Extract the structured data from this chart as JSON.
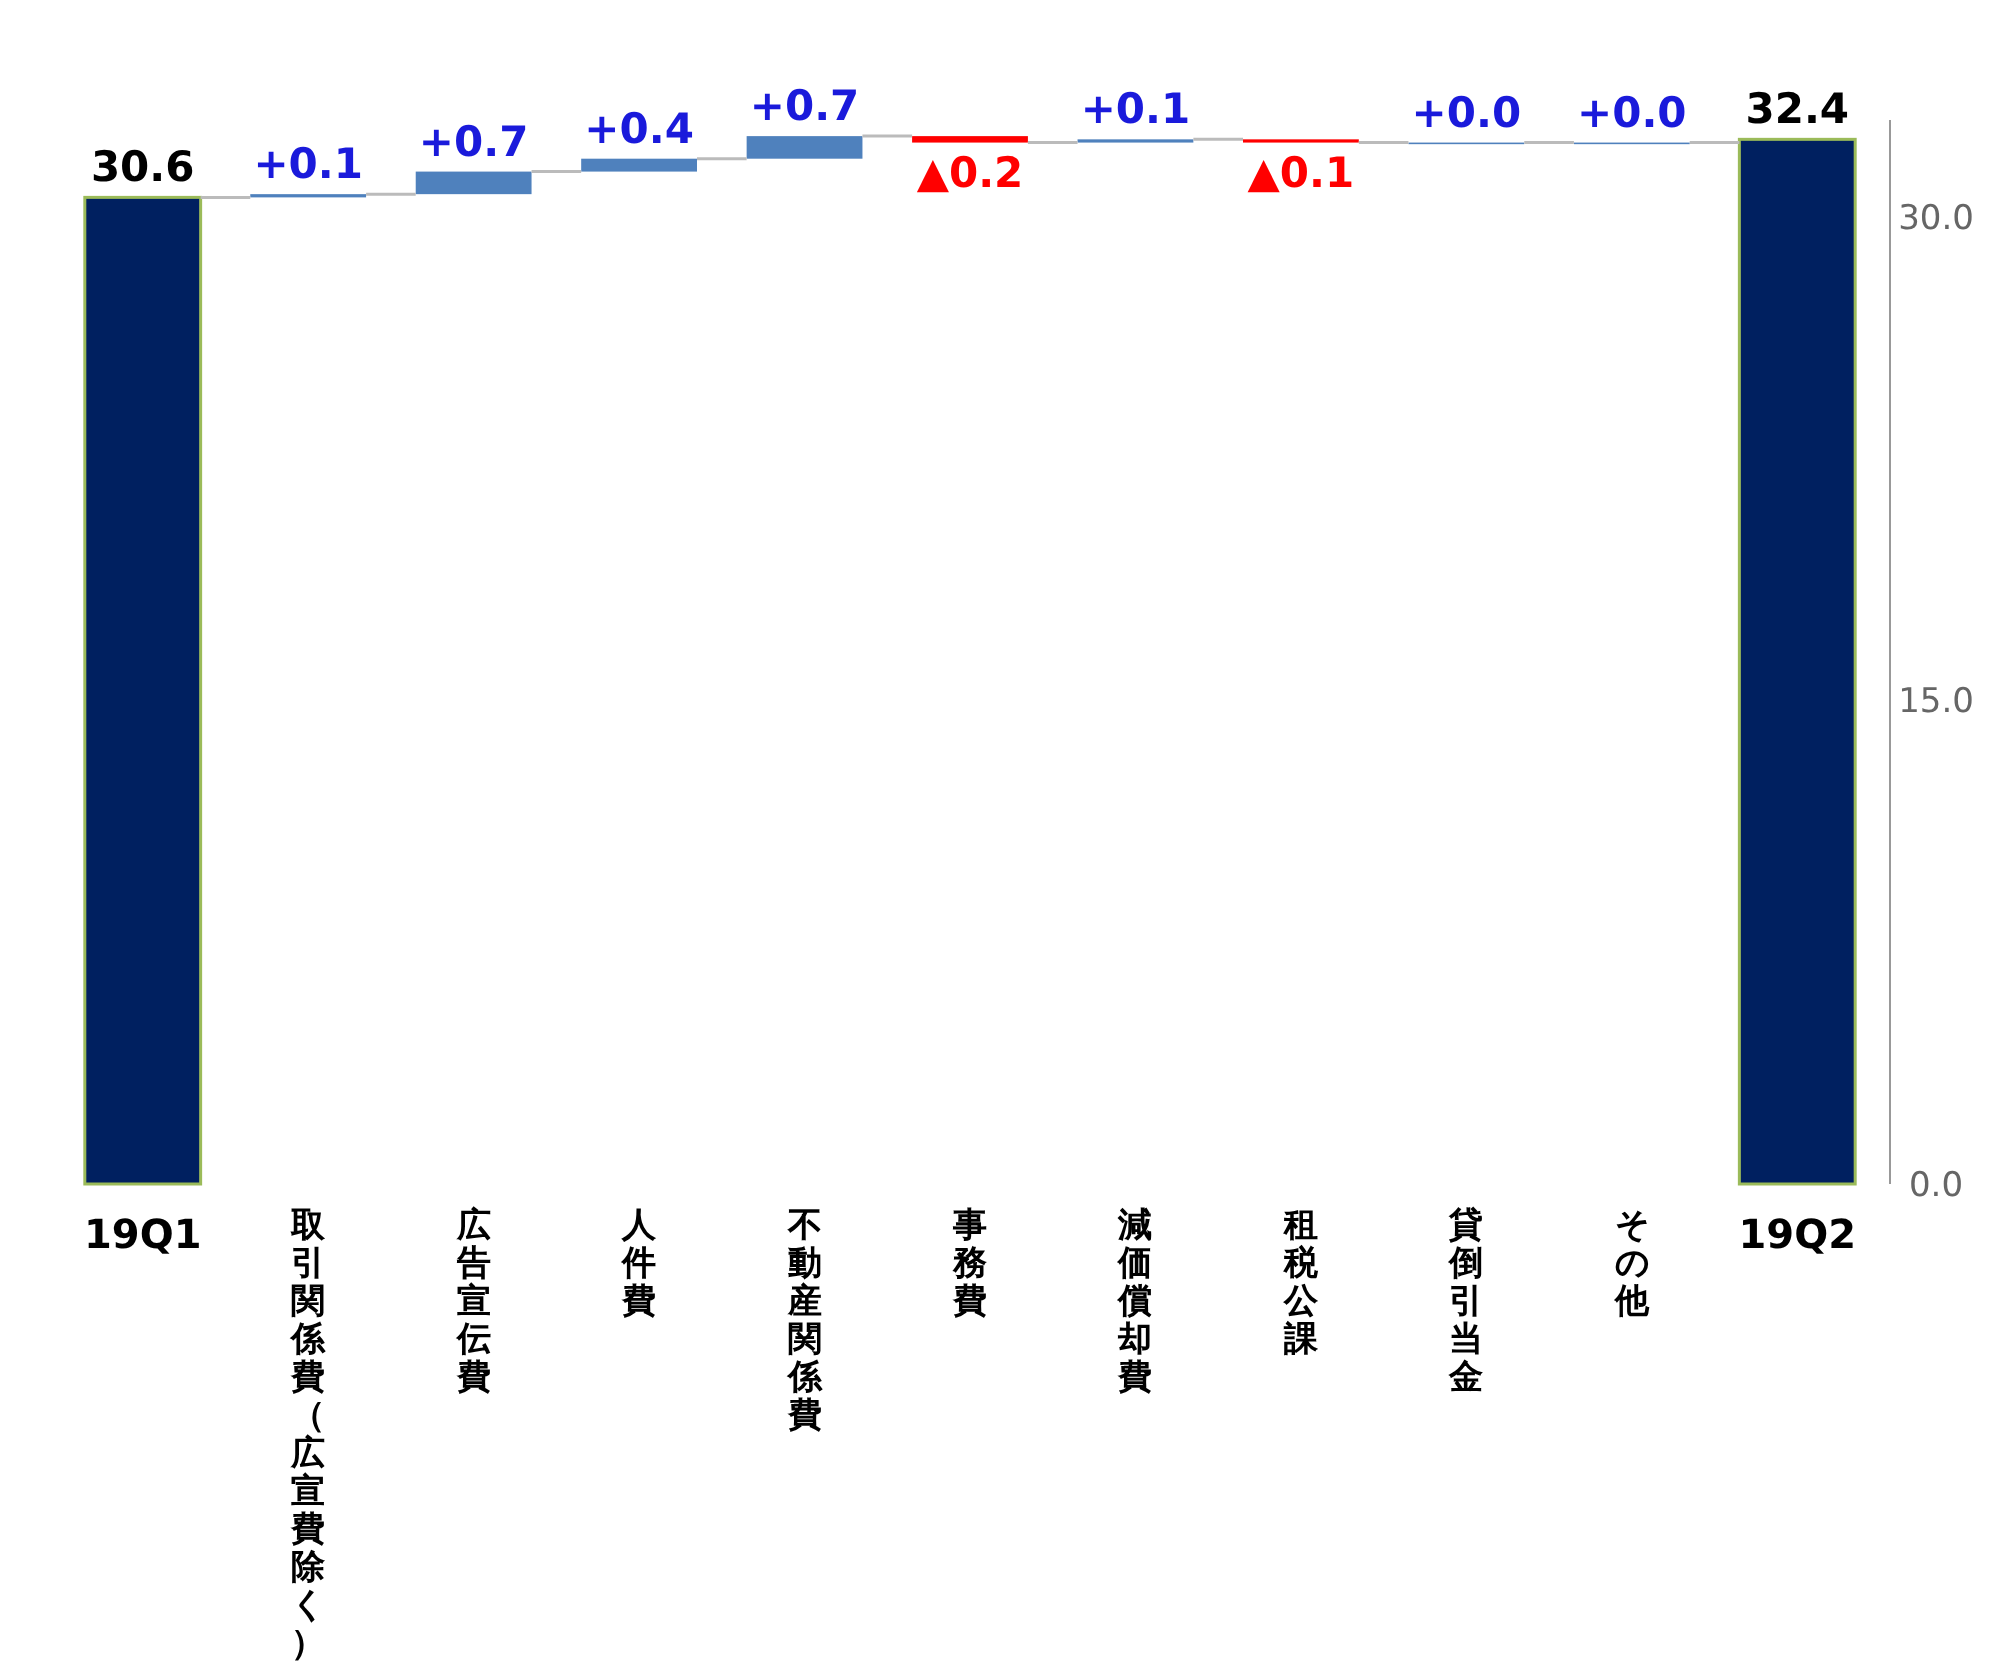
{
  "chart_data": {
    "type": "bar",
    "categories": [
      "19Q1",
      "取引関係費（広宣費除く）",
      "広告宣伝費",
      "人件費",
      "不動産関係費",
      "事務費",
      "減価償却費",
      "租税公課",
      "貸倒引当金",
      "その他",
      "19Q2"
    ],
    "values": [
      30.6,
      0.1,
      0.7,
      0.4,
      0.7,
      -0.2,
      0.1,
      -0.1,
      0.0,
      0.0,
      32.4
    ],
    "base": [
      0,
      30.6,
      30.7,
      31.4,
      31.8,
      32.5,
      32.3,
      32.4,
      32.3,
      32.3,
      0
    ],
    "colors": [
      "#002060",
      "#4f81bd",
      "#4f81bd",
      "#4f81bd",
      "#4f81bd",
      "#ff0000",
      "#4f81bd",
      "#ff0000",
      "#4f81bd",
      "#4f81bd",
      "#002060"
    ],
    "value_labels": [
      "30.6",
      "+0.1",
      "+0.7",
      "+0.4",
      "+0.7",
      "▲0.2",
      "+0.1",
      "▲0.1",
      "+0.0",
      "+0.0",
      "32.4"
    ],
    "ylim": [
      0,
      33
    ],
    "yticks": [
      {
        "value": 0,
        "label": "0.0"
      },
      {
        "value": 15,
        "label": "15.0"
      },
      {
        "value": 30,
        "label": "30.0"
      }
    ],
    "grid": false
  }
}
